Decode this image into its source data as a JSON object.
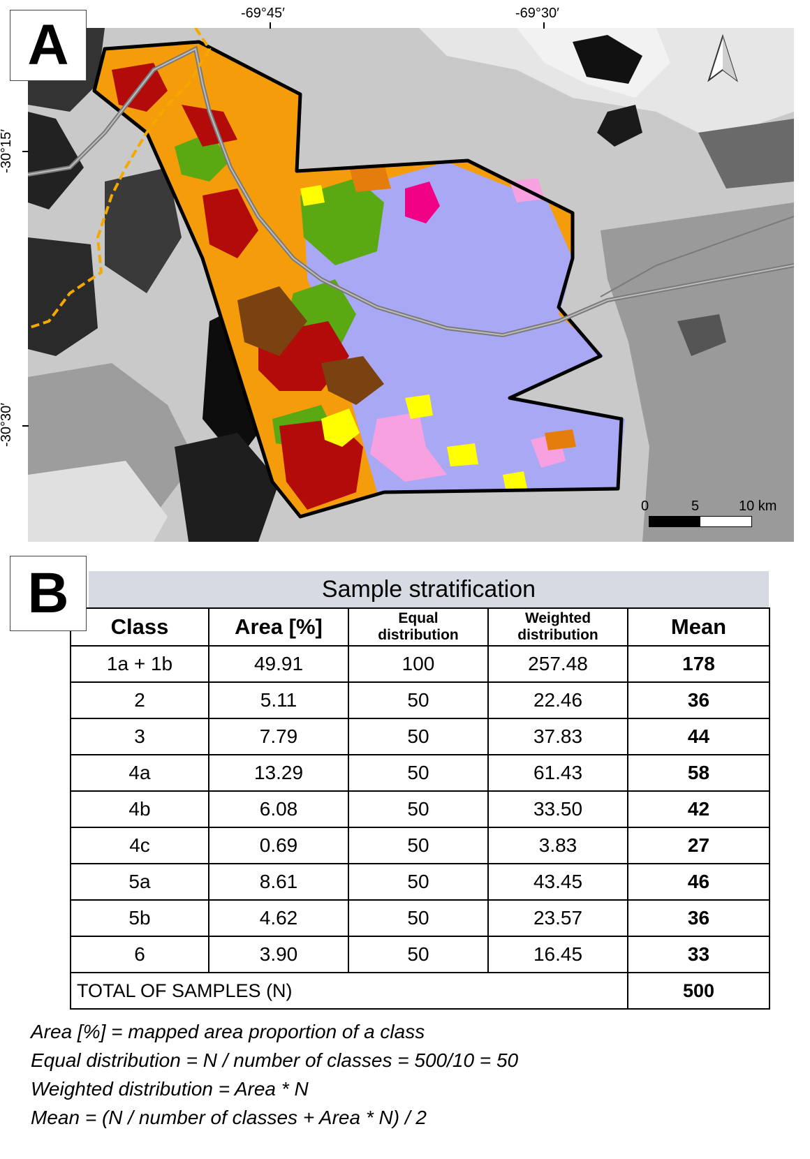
{
  "panel_a": {
    "letter": "A",
    "longitude_labels": [
      "-69°45′",
      "-69°30′"
    ],
    "latitude_labels": [
      "-30°15′",
      "-30°30′"
    ],
    "scale_labels": [
      "0",
      "5",
      "10 km"
    ],
    "north_arrow": "north-arrow-icon",
    "colors": {
      "class_1": "#a8a8f5",
      "class_2": "#f7a1e0",
      "class_3": "#ffff00",
      "class_4a": "#f59c0a",
      "class_4b": "#5aa812",
      "class_4c": "#f00085",
      "class_5a": "#b30a0a",
      "class_5b": "#7a4210",
      "class_6": "#e57d0d",
      "boundary": "#000000",
      "road": "#7a7a7a",
      "dashed_border": "#f5a800"
    }
  },
  "panel_b": {
    "letter": "B",
    "title": "Sample stratification",
    "headers": [
      "Class",
      "Area [%]",
      "Equal distribution",
      "Weighted distribution",
      "Mean"
    ],
    "header_lines": {
      "equal": [
        "Equal",
        "distribution"
      ],
      "weighted": [
        "Weighted",
        "distribution"
      ]
    },
    "rows": [
      {
        "cls": "1a + 1b",
        "area": "49.91",
        "equal": "100",
        "weighted": "257.48",
        "mean": "178"
      },
      {
        "cls": "2",
        "area": "5.11",
        "equal": "50",
        "weighted": "22.46",
        "mean": "36"
      },
      {
        "cls": "3",
        "area": "7.79",
        "equal": "50",
        "weighted": "37.83",
        "mean": "44"
      },
      {
        "cls": "4a",
        "area": "13.29",
        "equal": "50",
        "weighted": "61.43",
        "mean": "58"
      },
      {
        "cls": "4b",
        "area": "6.08",
        "equal": "50",
        "weighted": "33.50",
        "mean": "42"
      },
      {
        "cls": "4c",
        "area": "0.69",
        "equal": "50",
        "weighted": "3.83",
        "mean": "27"
      },
      {
        "cls": "5a",
        "area": "8.61",
        "equal": "50",
        "weighted": "43.45",
        "mean": "46"
      },
      {
        "cls": "5b",
        "area": "4.62",
        "equal": "50",
        "weighted": "23.57",
        "mean": "36"
      },
      {
        "cls": "6",
        "area": "3.90",
        "equal": "50",
        "weighted": "16.45",
        "mean": "33"
      }
    ],
    "total_label": "TOTAL OF SAMPLES (N)",
    "total_value": "500",
    "notes": [
      "Area [%] = mapped area proportion of a class",
      "Equal distribution = N / number of classes = 500/10 = 50",
      "Weighted distribution = Area * N",
      "Mean = (N / number of classes + Area * N) / 2"
    ]
  }
}
